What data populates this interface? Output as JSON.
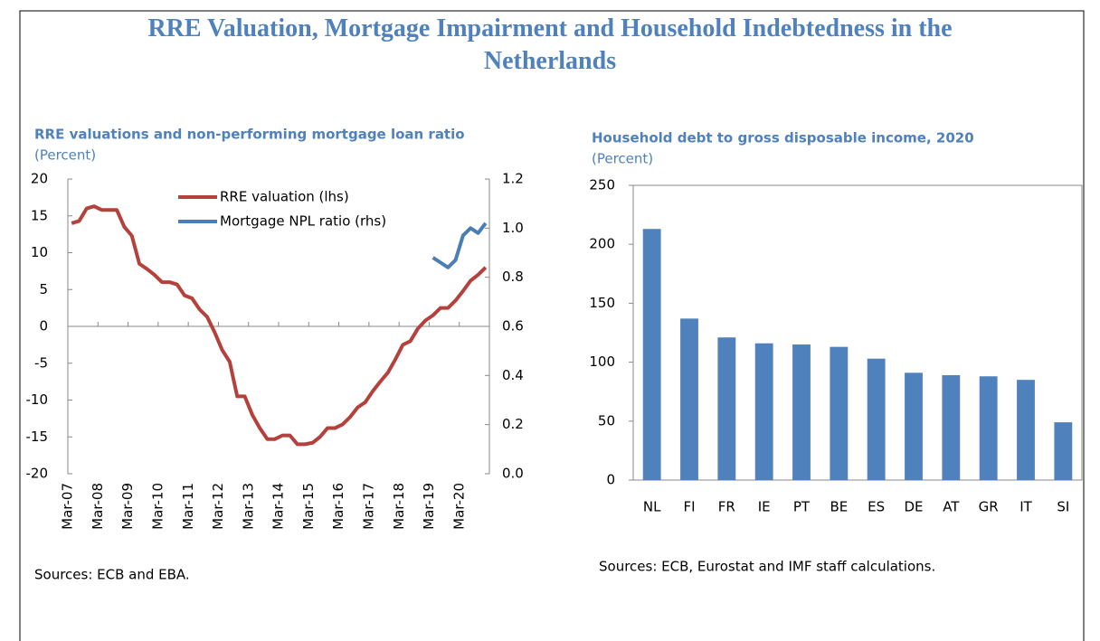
{
  "title": "RRE Valuation, Mortgage Impairment and Household Indebtedness in the Netherlands",
  "chart_data": [
    {
      "type": "line",
      "title": "RRE valuations and non-performing mortgage loan ratio",
      "subtitle": "(Percent)",
      "source": "Sources: ECB and EBA.",
      "categories": [
        "Mar-07",
        null,
        null,
        null,
        "Mar-08",
        null,
        null,
        null,
        "Mar-09",
        null,
        null,
        null,
        "Mar-10",
        null,
        null,
        null,
        "Mar-11",
        null,
        null,
        null,
        "Mar-12",
        null,
        null,
        null,
        "Mar-13",
        null,
        null,
        null,
        "Mar-14",
        null,
        null,
        null,
        "Mar-15",
        null,
        null,
        null,
        "Mar-16",
        null,
        null,
        null,
        "Mar-17",
        null,
        null,
        null,
        "Mar-18",
        null,
        null,
        null,
        "Mar-19",
        null,
        null,
        null,
        "Mar-20",
        null,
        null,
        null
      ],
      "series": [
        {
          "name": "RRE valuation (lhs)",
          "color": "#b5413c",
          "values": [
            14,
            14.3,
            16,
            16.3,
            15.8,
            15.8,
            15.8,
            13.5,
            12.3,
            8.5,
            7.8,
            7,
            6,
            6,
            5.7,
            4.2,
            3.8,
            2.3,
            1.3,
            -0.8,
            -3.2,
            -4.8,
            -9.5,
            -9.5,
            -12,
            -13.8,
            -15.3,
            -15.3,
            -14.8,
            -14.8,
            -16,
            -16,
            -15.8,
            -15,
            -13.8,
            -13.8,
            -13.3,
            -12.3,
            -11,
            -10.3,
            -8.8,
            -7.5,
            -6.3,
            -4.5,
            -2.5,
            -2,
            -0.3,
            0.8,
            1.5,
            2.5,
            2.5,
            3.5,
            4.8,
            6.2,
            7,
            8
          ]
        },
        {
          "name": "Mortgage NPL ratio (rhs)",
          "color": "#4a7eb5",
          "axis": "y2",
          "values": [
            null,
            null,
            null,
            null,
            null,
            null,
            null,
            null,
            null,
            null,
            null,
            null,
            null,
            null,
            null,
            null,
            null,
            null,
            null,
            null,
            null,
            null,
            null,
            null,
            null,
            null,
            null,
            null,
            null,
            null,
            null,
            null,
            null,
            null,
            null,
            null,
            null,
            null,
            null,
            null,
            null,
            null,
            null,
            null,
            null,
            null,
            null,
            null,
            0.88,
            0.86,
            0.84,
            0.87,
            0.97,
            1.0,
            0.98,
            1.02
          ]
        }
      ],
      "ylim": [
        -20,
        20
      ],
      "yticks": [
        -20,
        -15,
        -10,
        -5,
        0,
        5,
        10,
        15,
        20
      ],
      "y2lim": [
        0,
        1.2
      ],
      "y2ticks": [
        {
          "value": 0,
          "label": "0.0"
        },
        0.2,
        0.4,
        0.6,
        0.8,
        {
          "value": 1,
          "label": "1.0"
        },
        1.2
      ]
    },
    {
      "type": "bar",
      "title": "Household debt to gross disposable income, 2020",
      "subtitle": "(Percent)",
      "source": "Sources: ECB, Eurostat and IMF staff calculations.",
      "categories": [
        "NL",
        "FI",
        "FR",
        "IE",
        "PT",
        "BE",
        "ES",
        "DE",
        "AT",
        "GR",
        "IT",
        "SI"
      ],
      "values": [
        213,
        137,
        121,
        116,
        115,
        113,
        103,
        91,
        89,
        88,
        85,
        49
      ],
      "color": "#4f81bd",
      "ylim": [
        0,
        250
      ],
      "yticks": [
        0,
        50,
        100,
        150,
        200,
        250
      ]
    }
  ]
}
